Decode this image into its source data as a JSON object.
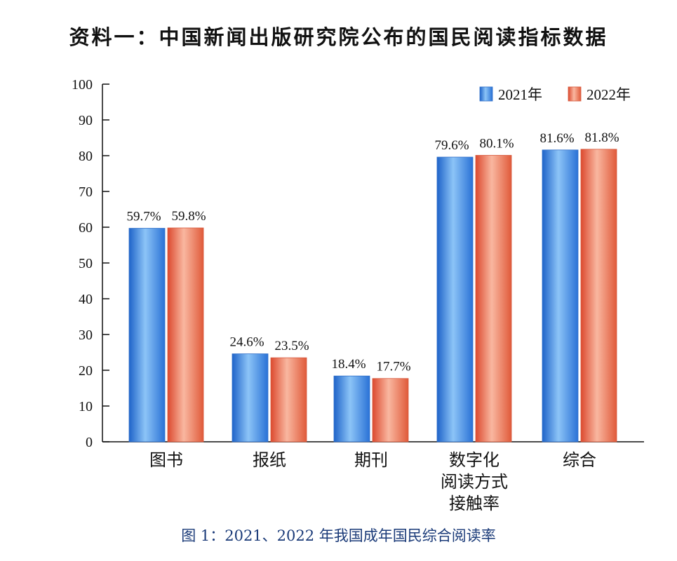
{
  "title": "资料一：中国新闻出版研究院公布的国民阅读指标数据",
  "caption": "图 1：2021、2022 年我国成年国民综合阅读率",
  "chart_data": {
    "type": "bar",
    "categories": [
      "图书",
      "报纸",
      "期刊",
      "数字化阅读方式接触率",
      "综合"
    ],
    "category_lines": [
      [
        "图书"
      ],
      [
        "报纸"
      ],
      [
        "期刊"
      ],
      [
        "数字化",
        "阅读方式",
        "接触率"
      ],
      [
        "综合"
      ]
    ],
    "series": [
      {
        "name": "2021年",
        "values": [
          59.7,
          24.6,
          18.4,
          79.6,
          81.6
        ],
        "labels": [
          "59.7%",
          "24.6%",
          "18.4%",
          "79.6%",
          "81.6%"
        ],
        "color": "#4f95e6"
      },
      {
        "name": "2022年",
        "values": [
          59.8,
          23.5,
          17.7,
          80.1,
          81.8
        ],
        "labels": [
          "59.8%",
          "23.5%",
          "17.7%",
          "80.1%",
          "81.8%"
        ],
        "color": "#ef7055"
      }
    ],
    "ylim": [
      0,
      100
    ],
    "yticks": [
      0,
      10,
      20,
      30,
      40,
      50,
      60,
      70,
      80,
      90,
      100
    ],
    "grid": false,
    "legend": "top-right"
  }
}
